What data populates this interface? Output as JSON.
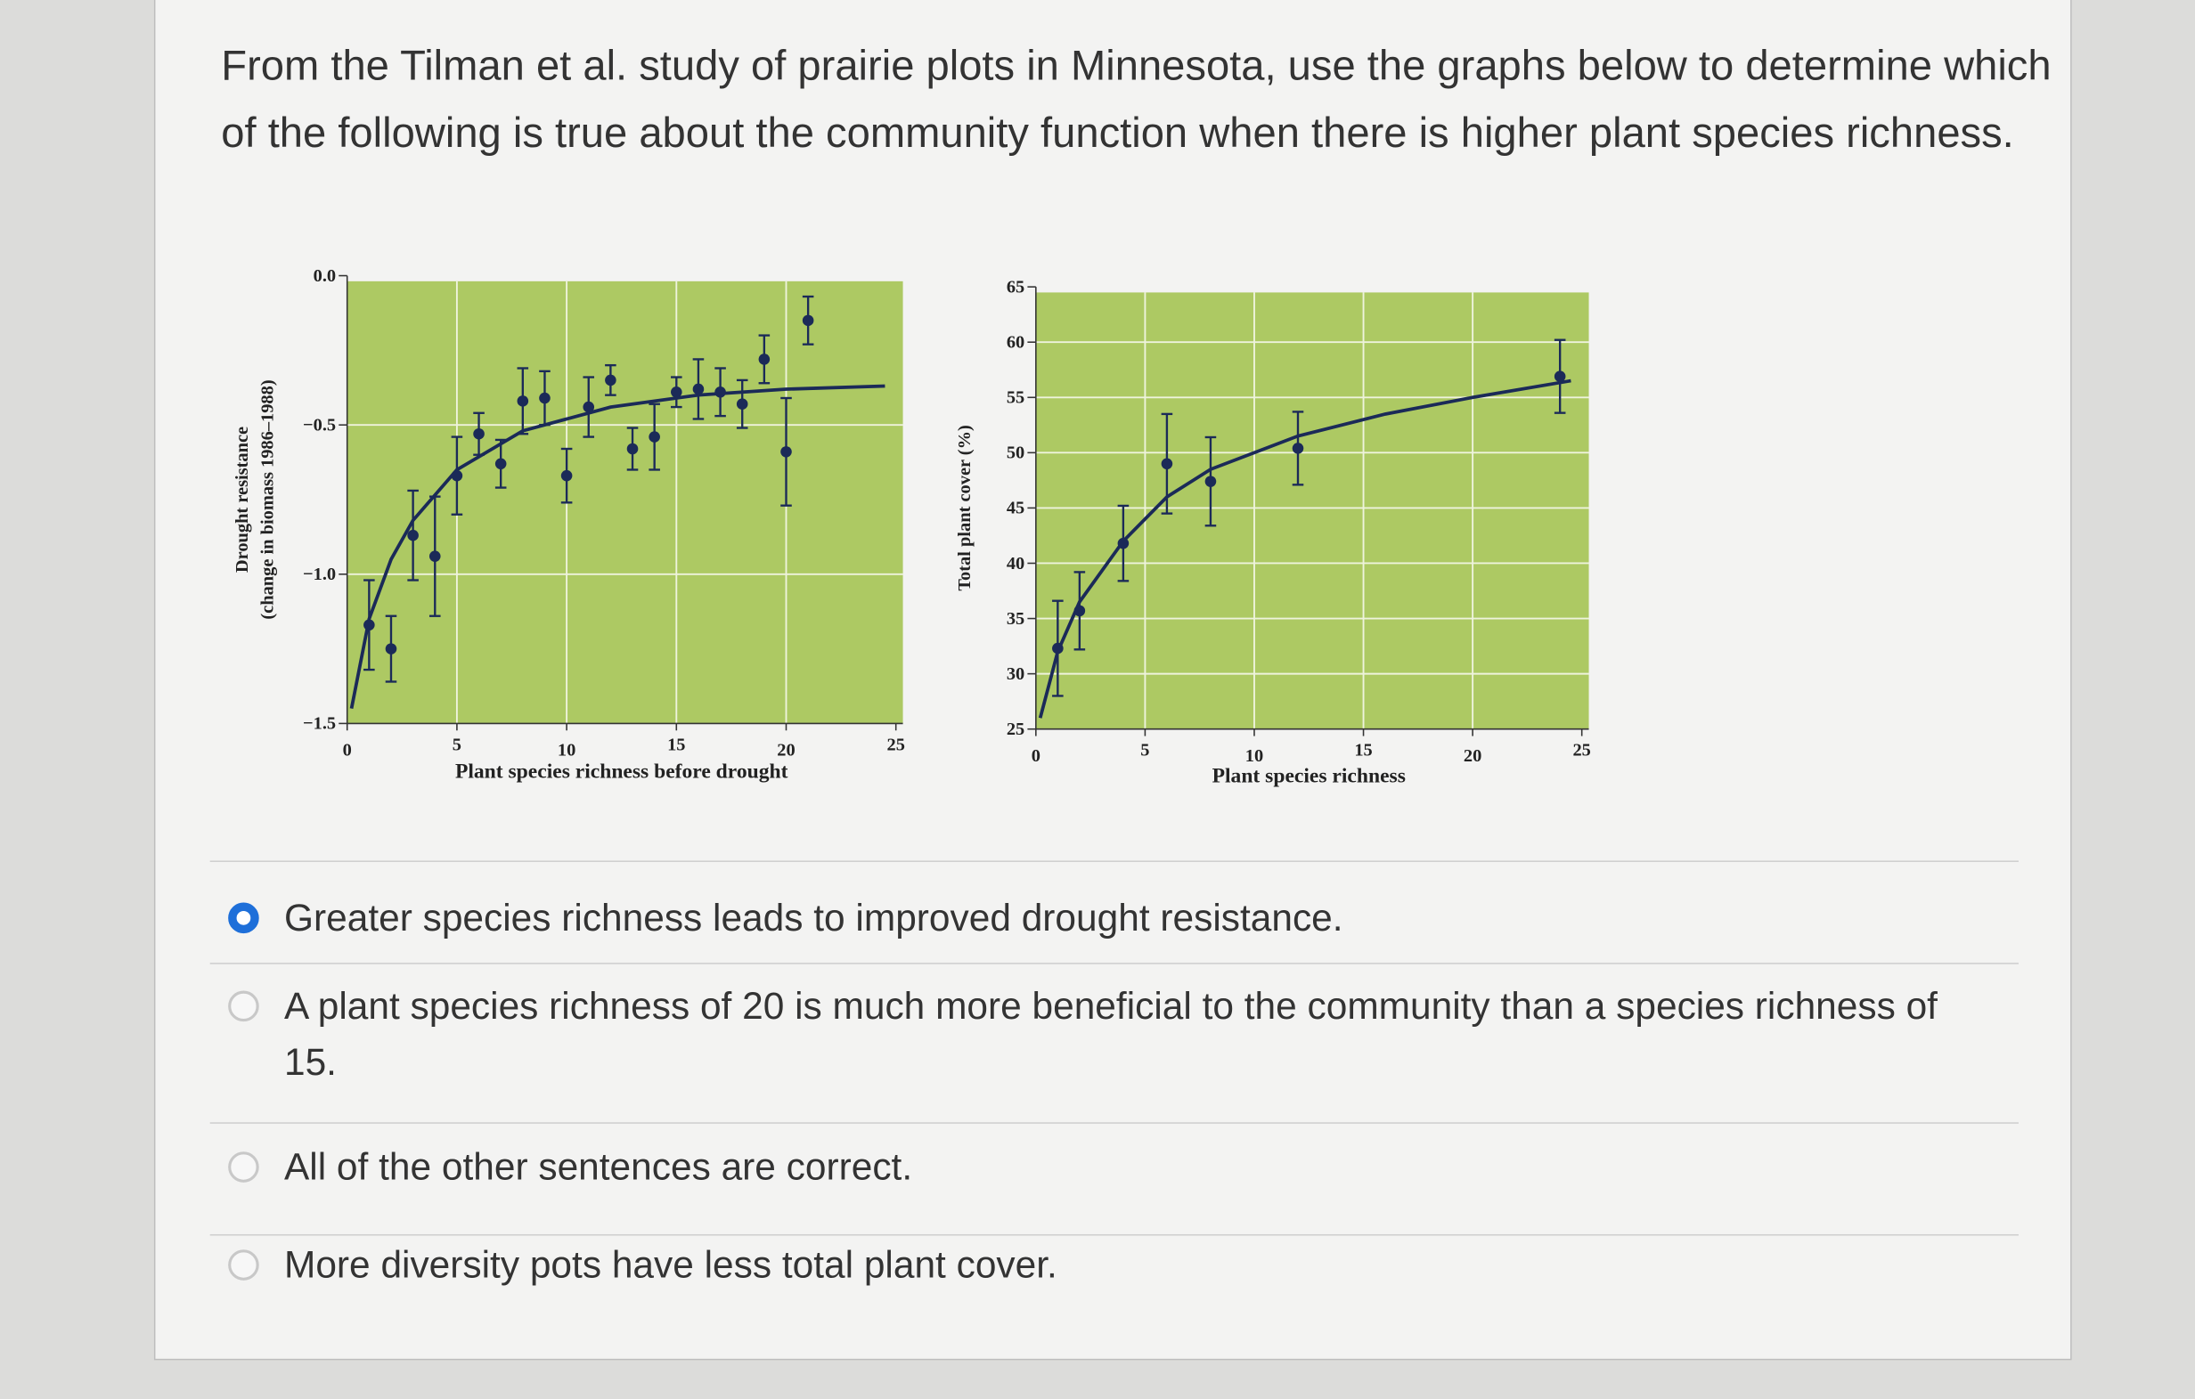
{
  "question": "From the Tilman et al. study of prairie plots in Minnesota, use the graphs below to determine which of the following is true about the community function when there is higher plant species richness.",
  "options": [
    {
      "text": "Greater species richness leads to improved drought resistance.",
      "selected": true
    },
    {
      "text": "A plant species richness of 20 is much more beneficial to the community than a species richness of 15.",
      "selected": false
    },
    {
      "text": "All of the other sentences are correct.",
      "selected": false
    },
    {
      "text": "More diversity pots have less total plant cover.",
      "selected": false
    }
  ],
  "chart_data": [
    {
      "type": "scatter",
      "xlabel": "Plant species richness before drought",
      "ylabel": [
        "Drought resistance",
        "(change in biomass 1986–1988)"
      ],
      "x": [
        1,
        2,
        3,
        4,
        5,
        6,
        7,
        8,
        9,
        10,
        11,
        12,
        13,
        14,
        15,
        16,
        17,
        18,
        19,
        20,
        21
      ],
      "values": [
        -1.17,
        -1.25,
        -0.87,
        -0.94,
        -0.67,
        -0.53,
        -0.63,
        -0.42,
        -0.41,
        -0.67,
        -0.44,
        -0.35,
        -0.58,
        -0.54,
        -0.39,
        -0.38,
        -0.39,
        -0.43,
        -0.28,
        -0.59,
        -0.15
      ],
      "errors": [
        0.15,
        0.11,
        0.15,
        0.2,
        0.13,
        0.07,
        0.08,
        0.11,
        0.09,
        0.09,
        0.1,
        0.05,
        0.07,
        0.11,
        0.05,
        0.1,
        0.08,
        0.08,
        0.08,
        0.18,
        0.08
      ],
      "color": "#1b2a58",
      "curve": {
        "x": [
          0.2,
          1,
          2,
          3,
          5,
          8,
          12,
          16,
          20,
          24.5
        ],
        "values": [
          -1.45,
          -1.15,
          -0.95,
          -0.82,
          -0.65,
          -0.52,
          -0.44,
          -0.4,
          -0.38,
          -0.37
        ],
        "color": "#1b2a58"
      },
      "plot_color": "#adc963",
      "grid": true,
      "xlim": [
        0,
        25
      ],
      "xticks": [
        0,
        5,
        10,
        15,
        20,
        25
      ],
      "ylim": [
        -1.5,
        0
      ],
      "yticks": [
        {
          "value": 0,
          "label": "0.0"
        },
        {
          "value": -0.5,
          "label": "−0.5"
        },
        {
          "value": -1,
          "label": "−1.0"
        },
        {
          "value": -1.5,
          "label": "−1.5"
        }
      ]
    },
    {
      "type": "scatter",
      "xlabel": "Plant species richness",
      "ylabel": [
        "Total plant cover (%)"
      ],
      "x": [
        1,
        2,
        4,
        6,
        8,
        12,
        24
      ],
      "values": [
        32.3,
        35.7,
        41.8,
        49,
        47.4,
        50.4,
        56.9
      ],
      "errors": [
        4.3,
        3.5,
        3.4,
        4.5,
        4,
        3.3,
        3.3
      ],
      "color": "#1b2a58",
      "curve": {
        "x": [
          0.2,
          1,
          2,
          4,
          6,
          8,
          12,
          16,
          20,
          24.5
        ],
        "values": [
          26,
          32,
          36.5,
          42,
          46,
          48.5,
          51.5,
          53.5,
          55,
          56.5
        ],
        "color": "#1b2a58"
      },
      "plot_color": "#adc963",
      "grid": true,
      "xlim": [
        0,
        25
      ],
      "xticks": [
        0,
        5,
        10,
        15,
        20,
        25
      ],
      "ylim": [
        25,
        65
      ],
      "yticks": [
        25,
        30,
        35,
        40,
        45,
        50,
        55,
        60,
        65
      ]
    }
  ]
}
